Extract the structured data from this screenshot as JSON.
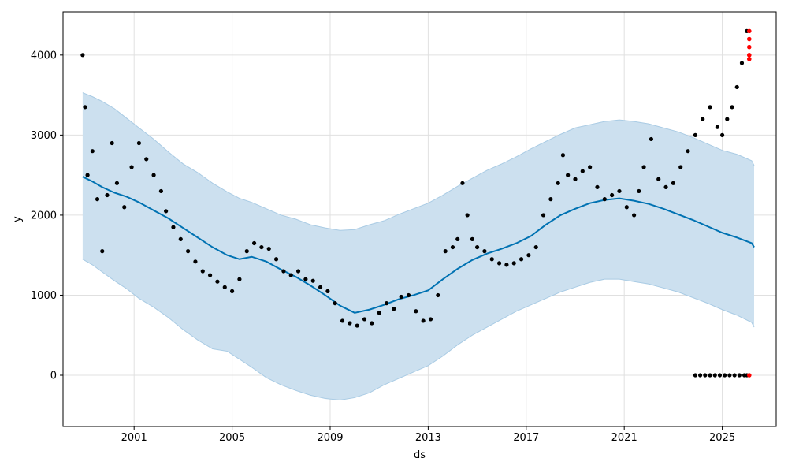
{
  "chart_data": {
    "type": "line",
    "xlabel": "ds",
    "ylabel": "y",
    "xlim": [
      1998.1,
      2027.2
    ],
    "ylim": [
      -640,
      4540
    ],
    "grid": true,
    "x_ticks": [
      {
        "value": 2001,
        "label": "2001"
      },
      {
        "value": 2005,
        "label": "2005"
      },
      {
        "value": 2009,
        "label": "2009"
      },
      {
        "value": 2013,
        "label": "2013"
      },
      {
        "value": 2017,
        "label": "2017"
      },
      {
        "value": 2021,
        "label": "2021"
      },
      {
        "value": 2025,
        "label": "2025"
      }
    ],
    "y_ticks": [
      {
        "value": 0,
        "label": "0"
      },
      {
        "value": 1000,
        "label": "1000"
      },
      {
        "value": 2000,
        "label": "2000"
      },
      {
        "value": 3000,
        "label": "3000"
      },
      {
        "value": 4000,
        "label": "4000"
      }
    ],
    "colors": {
      "forecast_line": "#0072B2",
      "uncertainty_fill": "#cce0ef",
      "uncertainty_edge": "#a9cbe4",
      "observed": "#000000",
      "highlight": "#ff0000",
      "grid": "#e0e0e0"
    },
    "series": [
      {
        "role": "forecast",
        "x": [
          1998.9,
          1999.3,
          1999.7,
          2000.2,
          2000.7,
          2001.2,
          2001.8,
          2002.4,
          2003.0,
          2003.6,
          2004.2,
          2004.8,
          2005.3,
          2005.8,
          2006.4,
          2007.0,
          2007.6,
          2008.2,
          2008.8,
          2009.4,
          2010.0,
          2010.6,
          2011.2,
          2011.8,
          2012.4,
          2013.0,
          2013.6,
          2014.2,
          2014.8,
          2015.4,
          2016.0,
          2016.6,
          2017.2,
          2017.8,
          2018.4,
          2019.0,
          2019.6,
          2020.2,
          2020.8,
          2021.4,
          2022.0,
          2022.6,
          2023.2,
          2023.8,
          2024.4,
          2025.0,
          2025.6,
          2026.2,
          2026.3
        ],
        "values": [
          2480,
          2420,
          2350,
          2280,
          2230,
          2160,
          2060,
          1960,
          1840,
          1720,
          1600,
          1500,
          1450,
          1480,
          1420,
          1320,
          1230,
          1120,
          1000,
          870,
          780,
          820,
          880,
          950,
          1000,
          1060,
          1200,
          1330,
          1440,
          1520,
          1580,
          1650,
          1740,
          1880,
          2000,
          2080,
          2150,
          2190,
          2210,
          2180,
          2140,
          2080,
          2010,
          1940,
          1860,
          1780,
          1720,
          1650,
          1600
        ],
        "lower": [
          1450,
          1380,
          1290,
          1180,
          1080,
          960,
          850,
          720,
          570,
          440,
          330,
          300,
          200,
          100,
          -30,
          -120,
          -190,
          -250,
          -290,
          -310,
          -280,
          -220,
          -120,
          -40,
          40,
          120,
          240,
          380,
          500,
          600,
          700,
          800,
          880,
          960,
          1040,
          1100,
          1160,
          1200,
          1200,
          1170,
          1140,
          1090,
          1040,
          970,
          900,
          820,
          750,
          660,
          600
        ],
        "upper": [
          3530,
          3480,
          3420,
          3330,
          3210,
          3090,
          2950,
          2790,
          2640,
          2530,
          2400,
          2290,
          2210,
          2160,
          2080,
          2000,
          1950,
          1880,
          1840,
          1810,
          1820,
          1880,
          1930,
          2010,
          2080,
          2150,
          2250,
          2360,
          2460,
          2560,
          2640,
          2730,
          2830,
          2920,
          3010,
          3090,
          3130,
          3170,
          3190,
          3170,
          3140,
          3090,
          3040,
          2970,
          2890,
          2810,
          2760,
          2680,
          2620
        ]
      },
      {
        "role": "observed",
        "x": [
          1998.9,
          1999.0,
          1999.1,
          1999.3,
          1999.5,
          1999.7,
          1999.9,
          2000.1,
          2000.3,
          2000.6,
          2000.9,
          2001.2,
          2001.5,
          2001.8,
          2002.1,
          2002.3,
          2002.6,
          2002.9,
          2003.2,
          2003.5,
          2003.8,
          2004.1,
          2004.4,
          2004.7,
          2005.0,
          2005.3,
          2005.6,
          2005.9,
          2006.2,
          2006.5,
          2006.8,
          2007.1,
          2007.4,
          2007.7,
          2008.0,
          2008.3,
          2008.6,
          2008.9,
          2009.2,
          2009.5,
          2009.8,
          2010.1,
          2010.4,
          2010.7,
          2011.0,
          2011.3,
          2011.6,
          2011.9,
          2012.2,
          2012.5,
          2012.8,
          2013.1,
          2013.4,
          2013.7,
          2014.0,
          2014.2,
          2014.4,
          2014.6,
          2014.8,
          2015.0,
          2015.3,
          2015.6,
          2015.9,
          2016.2,
          2016.5,
          2016.8,
          2017.1,
          2017.4,
          2017.7,
          2018.0,
          2018.3,
          2018.5,
          2018.7,
          2019.0,
          2019.3,
          2019.6,
          2019.9,
          2020.2,
          2020.5,
          2020.8,
          2021.1,
          2021.4,
          2021.6,
          2021.8,
          2022.1,
          2022.4,
          2022.7,
          2023.0,
          2023.3,
          2023.6,
          2023.9,
          2024.2,
          2024.5,
          2024.8,
          2025.0,
          2025.2,
          2025.4,
          2025.6,
          2025.8,
          2026.0
        ],
        "values": [
          4000,
          3350,
          2500,
          2800,
          2200,
          1550,
          2250,
          2900,
          2400,
          2100,
          2600,
          2900,
          2700,
          2500,
          2300,
          2050,
          1850,
          1700,
          1550,
          1420,
          1300,
          1250,
          1170,
          1100,
          1050,
          1200,
          1550,
          1650,
          1600,
          1580,
          1450,
          1300,
          1250,
          1300,
          1200,
          1180,
          1100,
          1050,
          900,
          680,
          650,
          620,
          700,
          650,
          780,
          900,
          830,
          980,
          1000,
          800,
          680,
          700,
          1000,
          1550,
          1600,
          1700,
          2400,
          2000,
          1700,
          1600,
          1550,
          1450,
          1400,
          1380,
          1400,
          1450,
          1500,
          1600,
          2000,
          2200,
          2400,
          2750,
          2500,
          2450,
          2550,
          2600,
          2350,
          2200,
          2250,
          2300,
          2100,
          2000,
          2300,
          2600,
          2950,
          2450,
          2350,
          2400,
          2600,
          2800,
          3000,
          3200,
          3350,
          3100,
          3000,
          3200,
          3350,
          3600,
          3900,
          4300
        ]
      },
      {
        "role": "zero-values",
        "x": [
          2023.9,
          2024.1,
          2024.3,
          2024.5,
          2024.7,
          2024.9,
          2025.1,
          2025.3,
          2025.5,
          2025.7,
          2025.9,
          2026.0
        ],
        "values": [
          0,
          0,
          0,
          0,
          0,
          0,
          0,
          0,
          0,
          0,
          0,
          0
        ]
      },
      {
        "role": "highlighted",
        "x": [
          2026.1,
          2026.1,
          2026.1,
          2026.1,
          2026.1,
          2026.1
        ],
        "values": [
          4300,
          4200,
          4100,
          4000,
          3950,
          0
        ]
      }
    ]
  }
}
